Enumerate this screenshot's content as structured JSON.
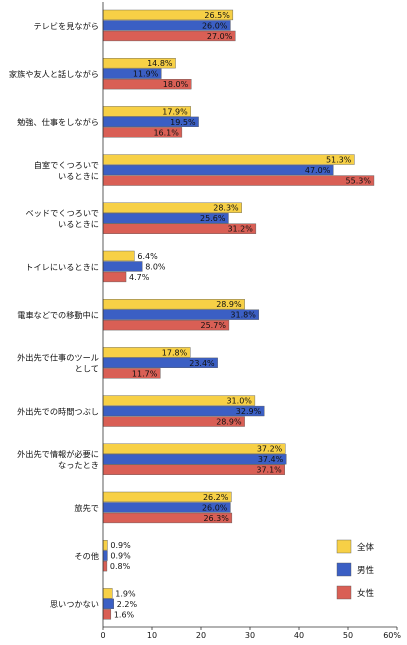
{
  "chart_data": {
    "type": "bar",
    "orientation": "horizontal",
    "categories": [
      [
        "テレビを見ながら"
      ],
      [
        "家族や友人と話しながら"
      ],
      [
        "勉強、仕事をしながら"
      ],
      [
        "自室でくつろいで",
        "いるときに"
      ],
      [
        "ベッドでくつろいで",
        "いるときに"
      ],
      [
        "トイレにいるときに"
      ],
      [
        "電車などでの移動中に"
      ],
      [
        "外出先で仕事のツール",
        "として"
      ],
      [
        "外出先での時間つぶし"
      ],
      [
        "外出先で情報が必要に",
        "なったとき"
      ],
      [
        "旅先で"
      ],
      [
        "その他"
      ],
      [
        "思いつかない"
      ]
    ],
    "series": [
      {
        "name": "全体",
        "color": "#f7d046",
        "values": [
          26.5,
          14.8,
          17.9,
          51.3,
          28.3,
          6.4,
          28.9,
          17.8,
          31.0,
          37.2,
          26.2,
          0.9,
          1.9
        ]
      },
      {
        "name": "男性",
        "color": "#3b5fc4",
        "values": [
          26.0,
          11.9,
          19.5,
          47.0,
          25.6,
          8.0,
          31.8,
          23.4,
          32.9,
          37.4,
          26.0,
          0.9,
          2.2
        ]
      },
      {
        "name": "女性",
        "color": "#d95f55",
        "values": [
          27.0,
          18.0,
          16.1,
          55.3,
          31.2,
          4.7,
          25.7,
          11.7,
          28.9,
          37.1,
          26.3,
          0.8,
          1.6
        ]
      }
    ],
    "xlim": [
      0,
      60
    ],
    "xticks": [
      "0",
      "10",
      "20",
      "30",
      "40",
      "50",
      "60%"
    ],
    "legend_position": "bottom-right",
    "grid": false
  }
}
